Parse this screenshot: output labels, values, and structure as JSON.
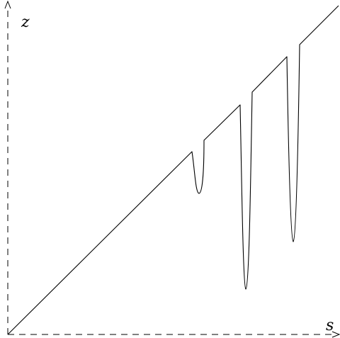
{
  "axes": {
    "vertical_label": "z",
    "horizontal_label": "s",
    "line_style": "dashed",
    "color": "#000000"
  },
  "curve": {
    "description_shape": "diagonal line from origin with three downward spikes of increasing depth",
    "color": "#000000"
  }
}
